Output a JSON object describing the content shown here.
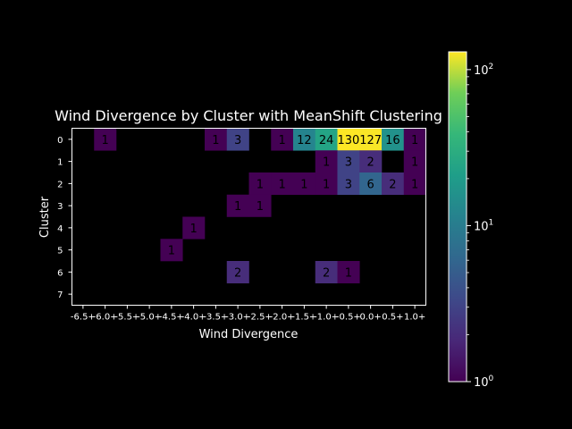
{
  "chart_data": {
    "type": "heatmap",
    "title": "Wind Divergence by Cluster with MeanShift Clustering",
    "xlabel": "Wind Divergence",
    "ylabel": "Cluster",
    "x_categories": [
      "-6.5+",
      "-6.0+",
      "-5.5+",
      "-5.0+",
      "-4.5+",
      "-4.0+",
      "-3.5+",
      "-3.0+",
      "-2.5+",
      "-2.0+",
      "-1.5+",
      "-1.0+",
      "-0.5+",
      "0.0+",
      "0.5+",
      "1.0+"
    ],
    "y_categories": [
      "0",
      "1",
      "2",
      "3",
      "4",
      "5",
      "6",
      "7"
    ],
    "cells": [
      {
        "row": 0,
        "col": 1,
        "value": 1
      },
      {
        "row": 0,
        "col": 6,
        "value": 1
      },
      {
        "row": 0,
        "col": 7,
        "value": 3
      },
      {
        "row": 0,
        "col": 9,
        "value": 1
      },
      {
        "row": 0,
        "col": 10,
        "value": 12
      },
      {
        "row": 0,
        "col": 11,
        "value": 24
      },
      {
        "row": 0,
        "col": 12,
        "value": 130
      },
      {
        "row": 0,
        "col": 13,
        "value": 127
      },
      {
        "row": 0,
        "col": 14,
        "value": 16
      },
      {
        "row": 0,
        "col": 15,
        "value": 1
      },
      {
        "row": 1,
        "col": 11,
        "value": 1
      },
      {
        "row": 1,
        "col": 12,
        "value": 3
      },
      {
        "row": 1,
        "col": 13,
        "value": 2
      },
      {
        "row": 1,
        "col": 15,
        "value": 1
      },
      {
        "row": 2,
        "col": 8,
        "value": 1
      },
      {
        "row": 2,
        "col": 9,
        "value": 1
      },
      {
        "row": 2,
        "col": 10,
        "value": 1
      },
      {
        "row": 2,
        "col": 11,
        "value": 1
      },
      {
        "row": 2,
        "col": 12,
        "value": 3
      },
      {
        "row": 2,
        "col": 13,
        "value": 6
      },
      {
        "row": 2,
        "col": 14,
        "value": 2
      },
      {
        "row": 2,
        "col": 15,
        "value": 1
      },
      {
        "row": 3,
        "col": 7,
        "value": 1
      },
      {
        "row": 3,
        "col": 8,
        "value": 1
      },
      {
        "row": 4,
        "col": 5,
        "value": 1
      },
      {
        "row": 5,
        "col": 4,
        "value": 1
      },
      {
        "row": 6,
        "col": 7,
        "value": 2
      },
      {
        "row": 6,
        "col": 11,
        "value": 2
      },
      {
        "row": 6,
        "col": 12,
        "value": 1
      }
    ],
    "colorbar": {
      "scale": "log",
      "colormap": "viridis",
      "min": 1,
      "max": 130,
      "tick_values": [
        1,
        10,
        100
      ],
      "tick_labels": [
        {
          "base": "10",
          "exp": "0"
        },
        {
          "base": "10",
          "exp": "1"
        },
        {
          "base": "10",
          "exp": "2"
        }
      ]
    },
    "colors": {
      "background": "#000000",
      "foreground": "#ffffff"
    }
  }
}
